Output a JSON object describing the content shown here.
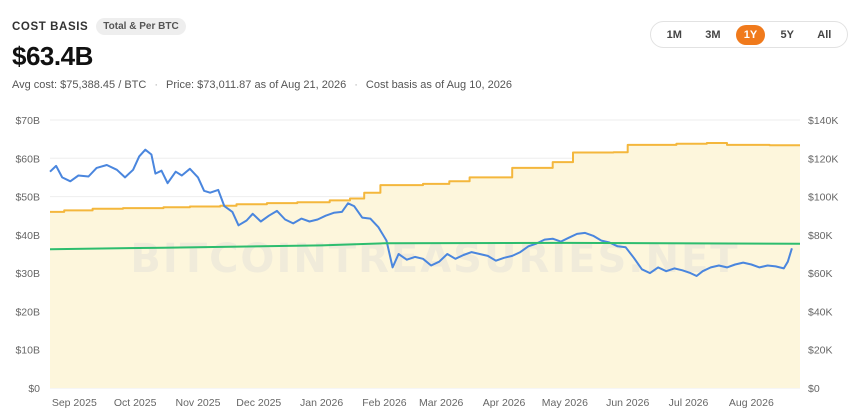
{
  "header": {
    "title": "COST BASIS",
    "badge": "Total & Per BTC",
    "value": "$63.4B",
    "avg_cost": "Avg cost: $75,388.45 / BTC",
    "price": "Price: $73,011.87 as of Aug 21, 2026",
    "basis_date": "Cost basis as of Aug 10, 2026"
  },
  "range_buttons": [
    {
      "label": "1M",
      "active": false
    },
    {
      "label": "3M",
      "active": false
    },
    {
      "label": "1Y",
      "active": true
    },
    {
      "label": "5Y",
      "active": false
    },
    {
      "label": "All",
      "active": false
    }
  ],
  "colors": {
    "cost_basis": "#f4b73c",
    "price": "#4a86de",
    "avg_cost": "#2dbd6e",
    "area_fill": "#fdf6dc",
    "grid": "#eeeeee",
    "accent": "#f07a1c"
  },
  "chart_data": {
    "type": "line",
    "watermark": "BITCOINTREASURIES.NET",
    "x_range": [
      "2025-08-20",
      "2026-08-25"
    ],
    "x_ticks": [
      {
        "label": "Sep 2025",
        "date": "2025-09-01"
      },
      {
        "label": "Oct 2025",
        "date": "2025-10-01"
      },
      {
        "label": "Nov 2025",
        "date": "2025-11-01"
      },
      {
        "label": "Dec 2025",
        "date": "2025-12-01"
      },
      {
        "label": "Jan 2026",
        "date": "2026-01-01"
      },
      {
        "label": "Feb 2026",
        "date": "2026-02-01"
      },
      {
        "label": "Mar 2026",
        "date": "2026-03-01"
      },
      {
        "label": "Apr 2026",
        "date": "2026-04-01"
      },
      {
        "label": "May 2026",
        "date": "2026-05-01"
      },
      {
        "label": "Jun 2026",
        "date": "2026-06-01"
      },
      {
        "label": "Jul 2026",
        "date": "2026-07-01"
      },
      {
        "label": "Aug 2026",
        "date": "2026-08-01"
      }
    ],
    "y_left": {
      "min": 0,
      "max": 70,
      "ticks": [
        "$0",
        "$10B",
        "$20B",
        "$30B",
        "$40B",
        "$50B",
        "$60B",
        "$70B"
      ]
    },
    "y_right": {
      "min": 0,
      "max": 140000,
      "ticks": [
        "$0",
        "$20K",
        "$40K",
        "$60K",
        "$80K",
        "$100K",
        "$120K",
        "$140K"
      ]
    },
    "grid": true,
    "series": [
      {
        "key": "cost_basis",
        "axis": "left",
        "step": true,
        "points": [
          [
            "2025-08-20",
            46.0
          ],
          [
            "2025-08-27",
            46.4
          ],
          [
            "2025-09-10",
            46.8
          ],
          [
            "2025-09-25",
            47.0
          ],
          [
            "2025-10-15",
            47.2
          ],
          [
            "2025-10-28",
            47.4
          ],
          [
            "2025-11-12",
            47.6
          ],
          [
            "2025-11-20",
            48.0
          ],
          [
            "2025-12-05",
            48.3
          ],
          [
            "2025-12-20",
            48.5
          ],
          [
            "2026-01-05",
            49.0
          ],
          [
            "2026-01-15",
            49.5
          ],
          [
            "2026-01-22",
            51.0
          ],
          [
            "2026-01-30",
            53.0
          ],
          [
            "2026-02-20",
            53.3
          ],
          [
            "2026-03-05",
            54.0
          ],
          [
            "2026-03-15",
            55.0
          ],
          [
            "2026-04-05",
            57.5
          ],
          [
            "2026-04-25",
            59.0
          ],
          [
            "2026-05-05",
            61.5
          ],
          [
            "2026-05-25",
            61.6
          ],
          [
            "2026-06-01",
            63.5
          ],
          [
            "2026-06-25",
            63.8
          ],
          [
            "2026-07-10",
            64.0
          ],
          [
            "2026-07-20",
            63.5
          ],
          [
            "2026-08-10",
            63.4
          ],
          [
            "2026-08-25",
            63.4
          ]
        ]
      },
      {
        "key": "price",
        "axis": "right",
        "step": false,
        "points": [
          [
            "2025-08-20",
            113000
          ],
          [
            "2025-08-23",
            116000
          ],
          [
            "2025-08-26",
            110000
          ],
          [
            "2025-08-30",
            108000
          ],
          [
            "2025-09-03",
            111000
          ],
          [
            "2025-09-08",
            110500
          ],
          [
            "2025-09-12",
            115000
          ],
          [
            "2025-09-17",
            116500
          ],
          [
            "2025-09-22",
            114000
          ],
          [
            "2025-09-26",
            110000
          ],
          [
            "2025-09-30",
            114000
          ],
          [
            "2025-10-03",
            121000
          ],
          [
            "2025-10-06",
            124500
          ],
          [
            "2025-10-09",
            122000
          ],
          [
            "2025-10-11",
            112000
          ],
          [
            "2025-10-14",
            113500
          ],
          [
            "2025-10-17",
            107000
          ],
          [
            "2025-10-21",
            113000
          ],
          [
            "2025-10-24",
            111000
          ],
          [
            "2025-10-28",
            114500
          ],
          [
            "2025-11-01",
            110000
          ],
          [
            "2025-11-04",
            103000
          ],
          [
            "2025-11-07",
            102000
          ],
          [
            "2025-11-11",
            103500
          ],
          [
            "2025-11-14",
            95000
          ],
          [
            "2025-11-18",
            92000
          ],
          [
            "2025-11-21",
            85000
          ],
          [
            "2025-11-25",
            87500
          ],
          [
            "2025-11-28",
            91000
          ],
          [
            "2025-12-02",
            87000
          ],
          [
            "2025-12-06",
            90000
          ],
          [
            "2025-12-10",
            92500
          ],
          [
            "2025-12-14",
            88000
          ],
          [
            "2025-12-18",
            86000
          ],
          [
            "2025-12-22",
            88500
          ],
          [
            "2025-12-26",
            87000
          ],
          [
            "2025-12-30",
            88000
          ],
          [
            "2026-01-03",
            90000
          ],
          [
            "2026-01-07",
            91500
          ],
          [
            "2026-01-11",
            92000
          ],
          [
            "2026-01-14",
            96500
          ],
          [
            "2026-01-17",
            95000
          ],
          [
            "2026-01-21",
            89000
          ],
          [
            "2026-01-25",
            88500
          ],
          [
            "2026-01-29",
            84000
          ],
          [
            "2026-02-02",
            77000
          ],
          [
            "2026-02-05",
            63000
          ],
          [
            "2026-02-08",
            70000
          ],
          [
            "2026-02-12",
            67000
          ],
          [
            "2026-02-16",
            68500
          ],
          [
            "2026-02-20",
            67500
          ],
          [
            "2026-02-24",
            64000
          ],
          [
            "2026-02-28",
            66000
          ],
          [
            "2026-03-04",
            70000
          ],
          [
            "2026-03-08",
            67500
          ],
          [
            "2026-03-12",
            69500
          ],
          [
            "2026-03-16",
            71000
          ],
          [
            "2026-03-20",
            70000
          ],
          [
            "2026-03-24",
            69000
          ],
          [
            "2026-03-28",
            66500
          ],
          [
            "2026-04-01",
            68000
          ],
          [
            "2026-04-05",
            69000
          ],
          [
            "2026-04-09",
            71000
          ],
          [
            "2026-04-13",
            74000
          ],
          [
            "2026-04-17",
            75500
          ],
          [
            "2026-04-21",
            77500
          ],
          [
            "2026-04-25",
            78000
          ],
          [
            "2026-04-29",
            76500
          ],
          [
            "2026-05-03",
            78500
          ],
          [
            "2026-05-07",
            80500
          ],
          [
            "2026-05-11",
            81000
          ],
          [
            "2026-05-15",
            79500
          ],
          [
            "2026-05-19",
            77000
          ],
          [
            "2026-05-23",
            76000
          ],
          [
            "2026-05-27",
            74000
          ],
          [
            "2026-05-31",
            73500
          ],
          [
            "2026-06-04",
            68000
          ],
          [
            "2026-06-08",
            62000
          ],
          [
            "2026-06-12",
            60000
          ],
          [
            "2026-06-16",
            63000
          ],
          [
            "2026-06-20",
            61000
          ],
          [
            "2026-06-24",
            62500
          ],
          [
            "2026-06-28",
            61500
          ],
          [
            "2026-07-02",
            60000
          ],
          [
            "2026-07-05",
            58500
          ],
          [
            "2026-07-08",
            61000
          ],
          [
            "2026-07-12",
            63000
          ],
          [
            "2026-07-16",
            64000
          ],
          [
            "2026-07-20",
            63000
          ],
          [
            "2026-07-24",
            64500
          ],
          [
            "2026-07-28",
            65500
          ],
          [
            "2026-08-01",
            64500
          ],
          [
            "2026-08-05",
            63000
          ],
          [
            "2026-08-09",
            64000
          ],
          [
            "2026-08-13",
            63500
          ],
          [
            "2026-08-17",
            62500
          ],
          [
            "2026-08-19",
            66000
          ],
          [
            "2026-08-21",
            73000
          ]
        ]
      },
      {
        "key": "avg_cost",
        "axis": "right",
        "step": false,
        "points": [
          [
            "2025-08-20",
            72500
          ],
          [
            "2025-10-15",
            73300
          ],
          [
            "2026-01-01",
            74500
          ],
          [
            "2026-02-01",
            75600
          ],
          [
            "2026-05-01",
            75800
          ],
          [
            "2026-08-25",
            75400
          ]
        ]
      }
    ]
  }
}
